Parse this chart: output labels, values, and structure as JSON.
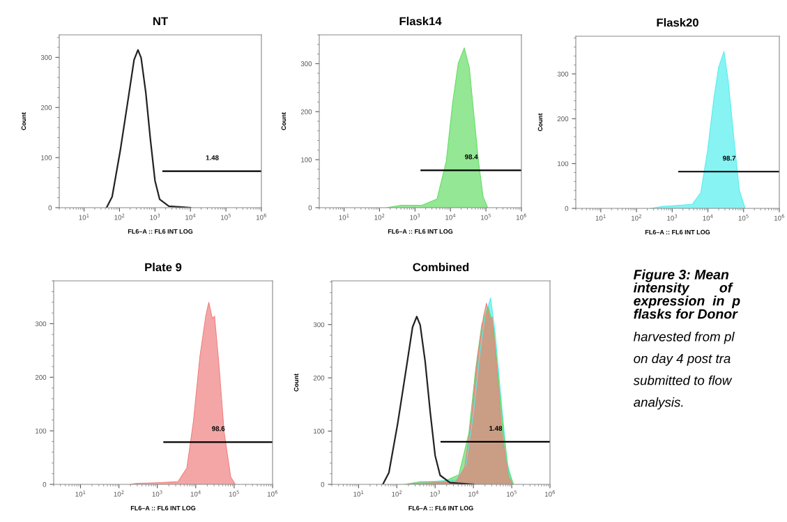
{
  "chart_data": [
    {
      "type": "area",
      "title": "NT",
      "xlabel": "FL6–A :: FL6 INT LOG",
      "ylabel": "Count",
      "log": "x",
      "grid": false,
      "xlim": [
        2,
        1000000
      ],
      "xticks": [
        {
          "value": 10,
          "label": "10$^{1}$"
        },
        {
          "value": 100,
          "label": "10$^{2}$"
        },
        {
          "value": 1000,
          "label": "10$^{3}$"
        },
        {
          "value": 10000,
          "label": "10$^{4}$"
        },
        {
          "value": 100000,
          "label": "10$^{5}$"
        },
        {
          "value": 1000000,
          "label": "10$^{6}$"
        }
      ],
      "ylim": [
        0,
        345
      ],
      "yticks": [
        0,
        100,
        200,
        300
      ],
      "series": [
        {
          "type": "line",
          "color": "#222222",
          "x": [
            43,
            62,
            105,
            178,
            257,
            331,
            407,
            550,
            741,
            1000,
            1349,
            2455,
            10000
          ],
          "values": [
            0,
            22,
            114,
            220,
            295,
            315,
            299,
            230,
            137,
            54,
            17,
            3,
            0
          ]
        },
        {
          "type": "line",
          "name": "1.48",
          "color": "#000000",
          "x": [
            1700,
            1000000
          ],
          "values": [
            73,
            73
          ]
        }
      ]
    },
    {
      "type": "area",
      "title": "Flask14",
      "xlabel": "FL6–A :: FL6 INT LOG",
      "ylabel": "Count",
      "log": "x",
      "grid": false,
      "xlim": [
        2,
        1000000
      ],
      "xticks": [
        {
          "value": 10,
          "label": "10$^{1}$"
        },
        {
          "value": 100,
          "label": "10$^{2}$"
        },
        {
          "value": 1000,
          "label": "10$^{3}$"
        },
        {
          "value": 10000,
          "label": "10$^{4}$"
        },
        {
          "value": 100000,
          "label": "10$^{5}$"
        },
        {
          "value": 1000000,
          "label": "10$^{6}$"
        }
      ],
      "ylim": [
        0,
        360
      ],
      "yticks": [
        0,
        100,
        200,
        300
      ],
      "series": [
        {
          "type": "area",
          "color": "#66dd66",
          "x": [
            158,
            398,
            1585,
            4170,
            7590,
            11500,
            16600,
            24500,
            33900,
            45700,
            61700,
            83200,
            112000
          ],
          "values": [
            0,
            5,
            5,
            18,
            96,
            218,
            301,
            333,
            292,
            194,
            96,
            23,
            0
          ]
        },
        {
          "type": "line",
          "name": "98.4",
          "color": "#000000",
          "x": [
            1500,
            1000000
          ],
          "values": [
            78,
            78
          ]
        }
      ]
    },
    {
      "type": "area",
      "title": "Flask20",
      "xlabel": "FL6–A :: FL6 INT LOG",
      "ylabel": "Count",
      "log": "x",
      "grid": false,
      "xlim": [
        2,
        1000000
      ],
      "xticks": [
        {
          "value": 10,
          "label": "10$^{1}$"
        },
        {
          "value": 100,
          "label": "10$^{2}$"
        },
        {
          "value": 1000,
          "label": "10$^{3}$"
        },
        {
          "value": 10000,
          "label": "10$^{4}$"
        },
        {
          "value": 100000,
          "label": "10$^{5}$"
        },
        {
          "value": 1000000,
          "label": "10$^{6}$"
        }
      ],
      "ylim": [
        0,
        384
      ],
      "yticks": [
        0,
        100,
        200,
        300
      ],
      "series": [
        {
          "type": "area",
          "color": "#55eeee",
          "x": [
            250,
            490,
            3630,
            6310,
            9770,
            14800,
            20000,
            28200,
            37200,
            53700,
            75900,
            110000
          ],
          "values": [
            0,
            4,
            9,
            35,
            128,
            247,
            315,
            350,
            283,
            154,
            40,
            0
          ]
        },
        {
          "type": "line",
          "name": "98.7",
          "color": "#000000",
          "x": [
            1550,
            1000000
          ],
          "values": [
            82,
            82
          ]
        }
      ]
    },
    {
      "type": "area",
      "title": "Plate 9",
      "xlabel": "FL6–A :: FL6 INT LOG",
      "log": "x",
      "grid": false,
      "xlim": [
        2,
        1000000
      ],
      "xticks": [
        {
          "value": 10,
          "label": "10$^{1}$"
        },
        {
          "value": 100,
          "label": "10$^{2}$"
        },
        {
          "value": 1000,
          "label": "10$^{3}$"
        },
        {
          "value": 10000,
          "label": "10$^{4}$"
        },
        {
          "value": 100000,
          "label": "10$^{5}$"
        },
        {
          "value": 1000000,
          "label": "10$^{6}$"
        }
      ],
      "ylim": [
        0,
        380
      ],
      "yticks": [
        0,
        100,
        200,
        300
      ],
      "series": [
        {
          "type": "area",
          "color": "#f08080",
          "x": [
            200,
            288,
            933,
            3470,
            5890,
            8710,
            12900,
            18200,
            21900,
            26900,
            30900,
            39800,
            55000,
            81300,
            107000
          ],
          "values": [
            0,
            2,
            3,
            5,
            31,
            118,
            240,
            314,
            340,
            310,
            314,
            227,
            97,
            14,
            0
          ]
        },
        {
          "type": "line",
          "name": "98.6",
          "color": "#000000",
          "x": [
            1500,
            1000000
          ],
          "values": [
            79,
            79
          ]
        }
      ]
    },
    {
      "type": "area",
      "title": "Combined",
      "xlabel": "FL6–A :: FL6 INT LOG",
      "ylabel": "Count",
      "log": "x",
      "grid": false,
      "xlim": [
        2,
        1000000
      ],
      "xticks": [
        {
          "value": 10,
          "label": "10$^{1}$"
        },
        {
          "value": 100,
          "label": "10$^{2}$"
        },
        {
          "value": 1000,
          "label": "10$^{3}$"
        },
        {
          "value": 10000,
          "label": "10$^{4}$"
        },
        {
          "value": 100000,
          "label": "10$^{5}$"
        },
        {
          "value": 1000000,
          "label": "10$^{6}$"
        }
      ],
      "ylim": [
        0,
        382
      ],
      "yticks": [
        0,
        100,
        200,
        300
      ],
      "series": [
        {
          "type": "area",
          "color": "#55eeee",
          "x": [
            250,
            490,
            3630,
            6310,
            9770,
            14800,
            20000,
            28200,
            37200,
            53700,
            75900,
            110000
          ],
          "values": [
            0,
            4,
            9,
            35,
            128,
            247,
            315,
            350,
            283,
            154,
            40,
            0
          ]
        },
        {
          "type": "area",
          "color": "#66dd66",
          "x": [
            158,
            398,
            1585,
            4170,
            7590,
            11500,
            16600,
            24500,
            33900,
            45700,
            61700,
            83200,
            112000
          ],
          "values": [
            0,
            5,
            5,
            18,
            96,
            218,
            301,
            333,
            292,
            194,
            96,
            23,
            0
          ]
        },
        {
          "type": "area",
          "color": "#f08080",
          "x": [
            200,
            288,
            933,
            3470,
            5890,
            8710,
            12900,
            18200,
            21900,
            26900,
            30900,
            39800,
            55000,
            81300,
            107000
          ],
          "values": [
            0,
            2,
            3,
            5,
            31,
            118,
            240,
            314,
            340,
            310,
            314,
            227,
            97,
            14,
            0
          ]
        },
        {
          "type": "line",
          "color": "#222222",
          "x": [
            43,
            62,
            105,
            178,
            257,
            331,
            407,
            550,
            741,
            1000,
            1349,
            2455,
            10000
          ],
          "values": [
            0,
            22,
            114,
            220,
            295,
            315,
            299,
            230,
            137,
            54,
            17,
            3,
            0
          ]
        },
        {
          "type": "line",
          "name": "1.48",
          "color": "#000000",
          "x": [
            1450,
            1000000
          ],
          "values": [
            80,
            80
          ]
        }
      ]
    },
    {
      "type": "other",
      "title": "Figure 3: Mean\nintensity        of\nexpression  in  p\nflasks for Donor",
      "annotations": [
        "harvested from pl",
        "on day 4 post tra",
        "submitted to flow",
        "analysis."
      ]
    }
  ]
}
